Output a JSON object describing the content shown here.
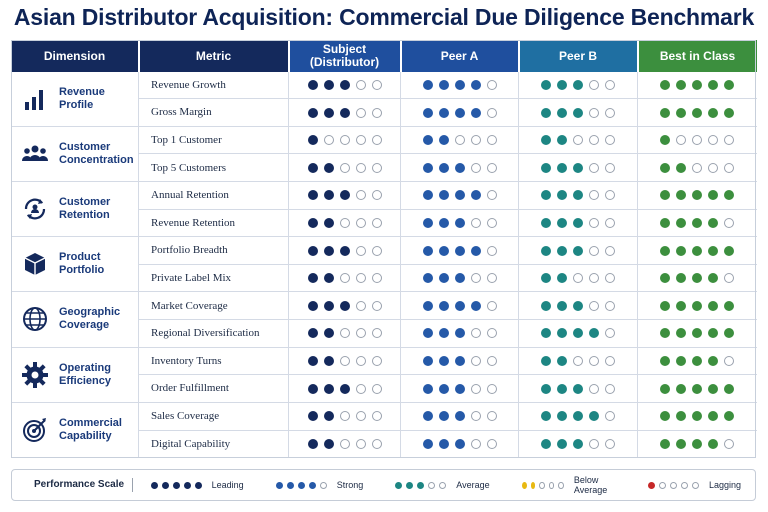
{
  "title": "Asian Distributor Acquisition: Commercial Due Diligence Benchmark",
  "headers": {
    "dimension": "Dimension",
    "metric": "Metric",
    "subject": "Subject\n(Distributor)",
    "peer_a": "Peer A",
    "peer_b": "Peer B",
    "best": "Best in Class"
  },
  "colors": {
    "header_dark": "#14295c",
    "subject": "#14295c",
    "peer_a": "#2559a8",
    "peer_b": "#1d8683",
    "best": "#3c8f3e",
    "average_yellow": "#e8b912",
    "lagging_red": "#c62828"
  },
  "chart_data": {
    "type": "table",
    "max_score": 5,
    "entities": [
      "Subject (Distributor)",
      "Peer A",
      "Peer B",
      "Best in Class"
    ],
    "dimensions": [
      {
        "name": "Revenue\nProfile",
        "icon": "bar-chart-icon",
        "metrics": [
          {
            "name": "Revenue Growth",
            "scores": [
              3,
              4,
              3,
              5
            ]
          },
          {
            "name": "Gross Margin",
            "scores": [
              3,
              4,
              3,
              5
            ]
          }
        ]
      },
      {
        "name": "Customer\nConcentration",
        "icon": "people-icon",
        "metrics": [
          {
            "name": "Top 1 Customer",
            "scores": [
              1,
              2,
              2,
              1
            ]
          },
          {
            "name": "Top 5 Customers",
            "scores": [
              2,
              3,
              3,
              2
            ]
          }
        ]
      },
      {
        "name": "Customer\nRetention",
        "icon": "retention-icon",
        "metrics": [
          {
            "name": "Annual Retention",
            "scores": [
              3,
              4,
              3,
              5
            ]
          },
          {
            "name": "Revenue Retention",
            "scores": [
              2,
              3,
              3,
              4
            ]
          }
        ]
      },
      {
        "name": "Product\nPortfolio",
        "icon": "cube-icon",
        "metrics": [
          {
            "name": "Portfolio Breadth",
            "scores": [
              3,
              4,
              3,
              5
            ]
          },
          {
            "name": "Private Label Mix",
            "scores": [
              2,
              3,
              2,
              4
            ]
          }
        ]
      },
      {
        "name": "Geographic\nCoverage",
        "icon": "globe-icon",
        "metrics": [
          {
            "name": "Market Coverage",
            "scores": [
              3,
              4,
              3,
              5
            ]
          },
          {
            "name": "Regional Diversification",
            "scores": [
              2,
              3,
              4,
              5
            ]
          }
        ]
      },
      {
        "name": "Operating\nEfficiency",
        "icon": "gear-icon",
        "metrics": [
          {
            "name": "Inventory Turns",
            "scores": [
              2,
              3,
              2,
              4
            ]
          },
          {
            "name": "Order Fulfillment",
            "scores": [
              3,
              3,
              3,
              5
            ]
          }
        ]
      },
      {
        "name": "Commercial\nCapability",
        "icon": "target-icon",
        "metrics": [
          {
            "name": "Sales Coverage",
            "scores": [
              2,
              3,
              4,
              5
            ]
          },
          {
            "name": "Digital Capability",
            "scores": [
              2,
              3,
              3,
              4
            ]
          }
        ]
      }
    ]
  },
  "legend": {
    "title": "Performance Scale",
    "items": [
      {
        "label": "Leading",
        "filled": 5,
        "color": "#14295c"
      },
      {
        "label": "Strong",
        "filled": 4,
        "color": "#2559a8"
      },
      {
        "label": "Average",
        "filled": 3,
        "color": "#1d8683"
      },
      {
        "label": "Below Average",
        "filled": 2,
        "color": "#e8b912"
      },
      {
        "label": "Lagging",
        "filled": 1,
        "color": "#c62828"
      }
    ]
  }
}
